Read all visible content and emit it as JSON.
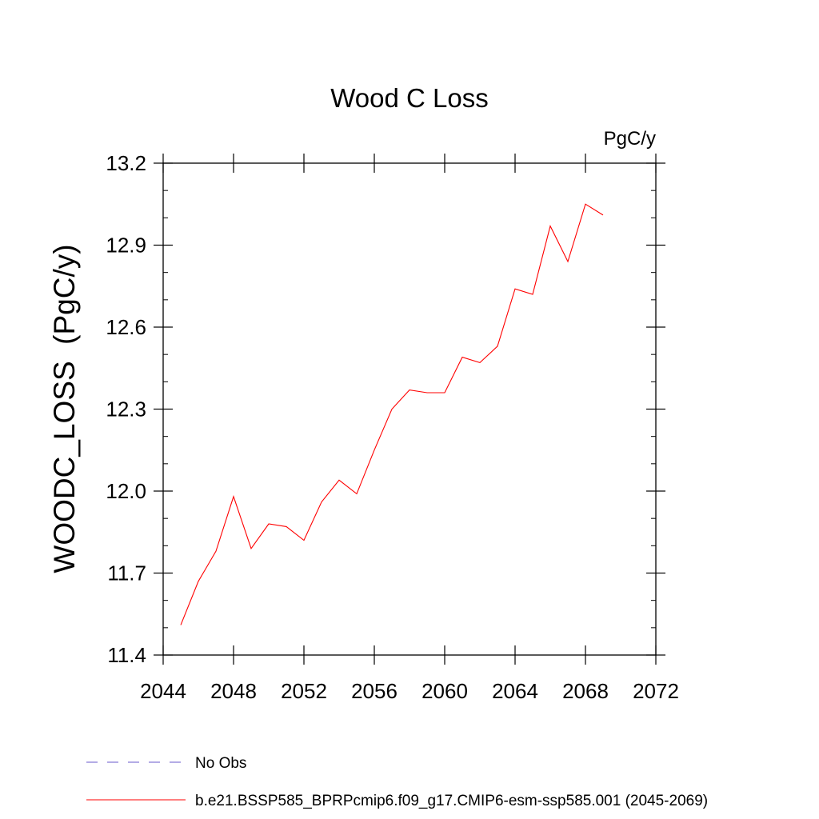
{
  "chart_data": {
    "type": "line",
    "title": "Wood C Loss",
    "units": "PgC/y",
    "ylabel": "WOODC_LOSS  (PgC/y)",
    "xlabel": "",
    "xlim": [
      2044,
      2072
    ],
    "ylim": [
      11.4,
      13.2
    ],
    "xticks": [
      2044,
      2048,
      2052,
      2056,
      2060,
      2064,
      2068,
      2072
    ],
    "xtick_labels": [
      "2044",
      "2048",
      "2052",
      "2056",
      "2060",
      "2064",
      "2068",
      "2072"
    ],
    "yticks": [
      11.4,
      11.7,
      12.0,
      12.3,
      12.6,
      12.9,
      13.2
    ],
    "ytick_labels": [
      "11.4",
      "11.7",
      "12.0",
      "12.3",
      "12.6",
      "12.9",
      "13.2"
    ],
    "grid": false,
    "legend_position": "bottom",
    "series": [
      {
        "name": "b.e21.BSSP585_BPRPcmip6.f09_g17.CMIP6-esm-ssp585.001 (2045-2069)",
        "color": "#ff0000",
        "style": "solid",
        "x": [
          2045,
          2046,
          2047,
          2048,
          2049,
          2050,
          2051,
          2052,
          2053,
          2054,
          2055,
          2056,
          2057,
          2058,
          2059,
          2060,
          2061,
          2062,
          2063,
          2064,
          2065,
          2066,
          2067,
          2068,
          2069
        ],
        "y": [
          11.51,
          11.67,
          11.78,
          11.98,
          11.79,
          11.88,
          11.87,
          11.82,
          11.96,
          12.04,
          11.99,
          12.15,
          12.3,
          12.37,
          12.36,
          12.36,
          12.49,
          12.47,
          12.53,
          12.74,
          12.72,
          12.97,
          12.84,
          13.05,
          13.01
        ]
      },
      {
        "name": "No Obs",
        "color": "#6a5acd",
        "style": "dashed",
        "x": [],
        "y": []
      }
    ]
  }
}
